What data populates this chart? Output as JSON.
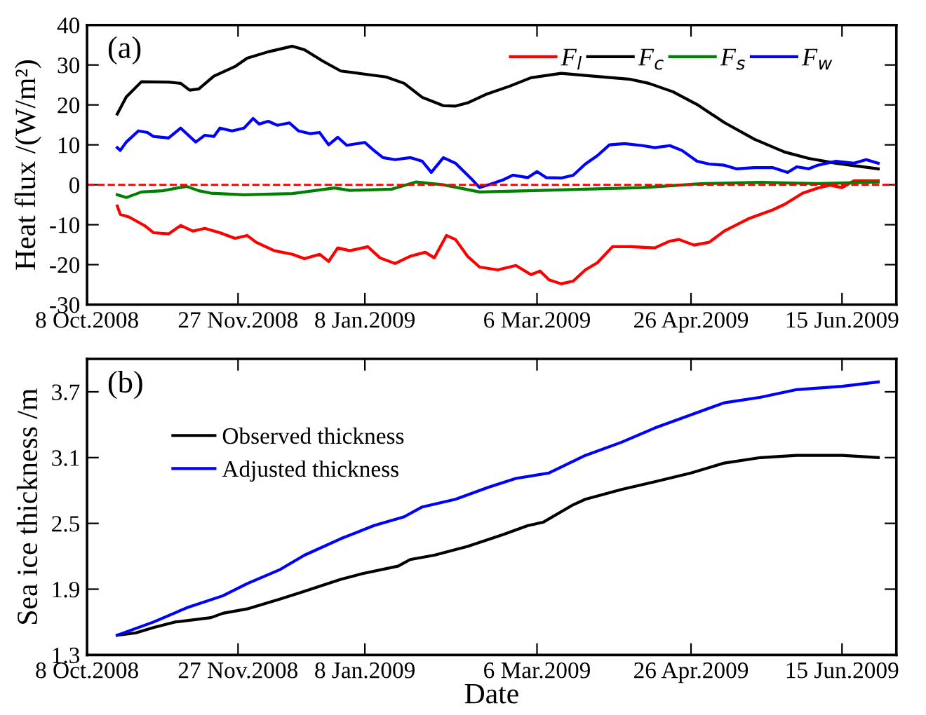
{
  "chart_data": [
    {
      "type": "line",
      "ylabel": "Heat flux /(W/m²)",
      "annotations": [
        "(a)"
      ],
      "xlim": [
        "2008-10-08",
        "2009-07-03"
      ],
      "ylim": [
        -30,
        40
      ],
      "xticks": [
        {
          "value": "2008-10-08",
          "label": "8 Oct.2008"
        },
        {
          "value": "2008-11-27",
          "label": "27 Nov.2008"
        },
        {
          "value": "2009-01-08",
          "label": "8 Jan.2009"
        },
        {
          "value": "2009-03-06",
          "label": "6 Mar.2009"
        },
        {
          "value": "2009-04-26",
          "label": "26 Apr.2009"
        },
        {
          "value": "2009-06-15",
          "label": "15 Jun.2009"
        }
      ],
      "yticks": [
        -30,
        -20,
        -10,
        0,
        10,
        20,
        30,
        40
      ],
      "grid": false,
      "legend": "top right",
      "line_style": "solid",
      "marker": "none",
      "ref_lines": [
        {
          "axis": "y",
          "value": 0,
          "color": "#ff0000",
          "line_style": "dashed"
        }
      ],
      "series": [
        {
          "name": "F$_{l}$",
          "color": "#ff0000",
          "x": [
            "2008-10-18",
            "2008-10-19",
            "2008-10-22",
            "2008-10-27",
            "2008-10-30",
            "2008-11-04",
            "2008-11-08",
            "2008-11-12",
            "2008-11-16",
            "2008-11-21",
            "2008-11-26",
            "2008-11-30",
            "2008-12-03",
            "2008-12-09",
            "2008-12-15",
            "2008-12-19",
            "2008-12-24",
            "2008-12-27",
            "2008-12-30",
            "2009-01-03",
            "2009-01-09",
            "2009-01-13",
            "2009-01-18",
            "2009-01-23",
            "2009-01-28",
            "2009-01-31",
            "2009-02-04",
            "2009-02-07",
            "2009-02-11",
            "2009-02-15",
            "2009-02-21",
            "2009-02-27",
            "2009-03-04",
            "2009-03-07",
            "2009-03-10",
            "2009-03-14",
            "2009-03-18",
            "2009-03-22",
            "2009-03-26",
            "2009-03-31",
            "2009-04-06",
            "2009-04-14",
            "2009-04-19",
            "2009-04-22",
            "2009-04-27",
            "2009-05-02",
            "2009-05-07",
            "2009-05-15",
            "2009-05-23",
            "2009-05-27",
            "2009-06-02",
            "2009-06-07",
            "2009-06-11",
            "2009-06-15",
            "2009-06-19",
            "2009-06-27"
          ],
          "values": [
            -5.3,
            -7.4,
            -8.1,
            -10.2,
            -12,
            -12.3,
            -10.2,
            -11.6,
            -10.9,
            -12,
            -13.4,
            -12.7,
            -14.4,
            -16.5,
            -17.4,
            -18.5,
            -17.4,
            -19.2,
            -15.8,
            -16.5,
            -15.5,
            -18.3,
            -19.7,
            -17.9,
            -16.9,
            -18.3,
            -12.7,
            -13.7,
            -17.9,
            -20.6,
            -21.3,
            -20.2,
            -22.5,
            -21.6,
            -23.8,
            -24.8,
            -24.1,
            -21.3,
            -19.5,
            -15.5,
            -15.5,
            -15.8,
            -14.1,
            -13.7,
            -15.1,
            -14.4,
            -11.6,
            -8.5,
            -6.3,
            -4.9,
            -2.1,
            -0.8,
            -0.1,
            -0.7,
            1,
            1
          ]
        },
        {
          "name": "F$_{c}$",
          "color": "#000000",
          "x": [
            "2008-10-18",
            "2008-10-21",
            "2008-10-26",
            "2008-11-04",
            "2008-11-08",
            "2008-11-11",
            "2008-11-14",
            "2008-11-19",
            "2008-11-26",
            "2008-11-30",
            "2008-12-07",
            "2008-12-15",
            "2008-12-19",
            "2008-12-25",
            "2008-12-31",
            "2009-01-07",
            "2009-01-15",
            "2009-01-21",
            "2009-01-27",
            "2009-02-03",
            "2009-02-07",
            "2009-02-11",
            "2009-02-17",
            "2009-02-25",
            "2009-03-04",
            "2009-03-14",
            "2009-03-20",
            "2009-03-26",
            "2009-04-06",
            "2009-04-12",
            "2009-04-20",
            "2009-04-28",
            "2009-05-07",
            "2009-05-17",
            "2009-05-27",
            "2009-06-04",
            "2009-06-13",
            "2009-06-27"
          ],
          "values": [
            17.7,
            22,
            25.8,
            25.7,
            25.4,
            23.7,
            24,
            27.2,
            29.6,
            31.7,
            33.3,
            34.7,
            33.8,
            31,
            28.5,
            27.8,
            27,
            25.4,
            21.9,
            19.8,
            19.7,
            20.5,
            22.6,
            24.7,
            26.8,
            27.9,
            27.5,
            27.1,
            26.4,
            25.4,
            23.3,
            20.1,
            15.6,
            11.4,
            8.2,
            6.6,
            5.4,
            4.0
          ]
        },
        {
          "name": "F$_{s}$",
          "color": "#008000",
          "x": [
            "2008-10-18",
            "2008-10-21",
            "2008-10-26",
            "2008-11-02",
            "2008-11-10",
            "2008-11-14",
            "2008-11-18",
            "2008-11-29",
            "2008-12-15",
            "2008-12-29",
            "2009-01-03",
            "2009-01-17",
            "2009-01-25",
            "2009-02-03",
            "2009-02-15",
            "2009-03-03",
            "2009-03-22",
            "2009-04-10",
            "2009-04-30",
            "2009-05-19",
            "2009-06-07",
            "2009-06-27"
          ],
          "values": [
            -2.5,
            -3.2,
            -1.8,
            -1.5,
            -0.4,
            -1.5,
            -2.1,
            -2.5,
            -2.2,
            -0.8,
            -1.4,
            -1.1,
            0.7,
            0,
            -1.8,
            -1.5,
            -1.1,
            -0.7,
            0.3,
            0.6,
            0.3,
            0.7
          ]
        },
        {
          "name": "F$_{w}$",
          "color": "#0000ff",
          "x": [
            "2008-10-18",
            "2008-10-19",
            "2008-10-21",
            "2008-10-25",
            "2008-10-28",
            "2008-10-30",
            "2008-11-04",
            "2008-11-08",
            "2008-11-10",
            "2008-11-13",
            "2008-11-16",
            "2008-11-19",
            "2008-11-21",
            "2008-11-25",
            "2008-11-29",
            "2008-12-02",
            "2008-12-04",
            "2008-12-07",
            "2008-12-10",
            "2008-12-14",
            "2008-12-17",
            "2008-12-21",
            "2008-12-24",
            "2008-12-27",
            "2008-12-30",
            "2009-01-02",
            "2009-01-08",
            "2009-01-11",
            "2009-01-14",
            "2009-01-18",
            "2009-01-23",
            "2009-01-27",
            "2009-01-30",
            "2009-02-03",
            "2009-02-07",
            "2009-02-12",
            "2009-02-15",
            "2009-02-18",
            "2009-02-23",
            "2009-02-26",
            "2009-03-03",
            "2009-03-06",
            "2009-03-09",
            "2009-03-14",
            "2009-03-18",
            "2009-03-22",
            "2009-03-26",
            "2009-03-30",
            "2009-04-04",
            "2009-04-10",
            "2009-04-14",
            "2009-04-19",
            "2009-04-23",
            "2009-04-28",
            "2009-05-02",
            "2009-05-07",
            "2009-05-11",
            "2009-05-17",
            "2009-05-23",
            "2009-05-28",
            "2009-05-31",
            "2009-06-04",
            "2009-06-07",
            "2009-06-13",
            "2009-06-19",
            "2009-06-23",
            "2009-06-27"
          ],
          "values": [
            9.3,
            8.6,
            10.7,
            13.5,
            13.1,
            12.1,
            11.7,
            14.2,
            12.8,
            10.7,
            12.4,
            12.1,
            14.2,
            13.5,
            14.2,
            16.6,
            15.2,
            15.9,
            14.9,
            15.5,
            13.5,
            12.8,
            13.1,
            10,
            11.9,
            9.9,
            10.6,
            8.6,
            6.8,
            6.3,
            6.8,
            5.9,
            3.1,
            6.8,
            5.4,
            1.7,
            -0.7,
            0,
            1.3,
            2.4,
            1.8,
            3.3,
            1.8,
            1.7,
            2.4,
            5.2,
            7.3,
            10,
            10.3,
            9.8,
            9.3,
            9.8,
            8.6,
            5.9,
            5.2,
            4.9,
            4,
            4.3,
            4.3,
            3.1,
            4.5,
            4,
            4.9,
            5.9,
            5.4,
            6.3,
            5.4
          ]
        }
      ]
    },
    {
      "type": "line",
      "xlabel": "Date",
      "ylabel": "Sea ice thickness /m",
      "annotations": [
        "(b)"
      ],
      "xlim": [
        "2008-10-08",
        "2009-07-03"
      ],
      "ylim": [
        1.3,
        4.0
      ],
      "xticks": [
        {
          "value": "2008-10-08",
          "label": "8 Oct.2008"
        },
        {
          "value": "2008-11-27",
          "label": "27 Nov.2008"
        },
        {
          "value": "2009-01-08",
          "label": "8 Jan.2009"
        },
        {
          "value": "2009-03-06",
          "label": "6 Mar.2009"
        },
        {
          "value": "2009-04-26",
          "label": "26 Apr.2009"
        },
        {
          "value": "2009-06-15",
          "label": "15 Jun.2009"
        }
      ],
      "yticks": [
        1.3,
        1.9,
        2.5,
        3.1,
        3.7
      ],
      "grid": false,
      "legend": "top left",
      "line_style": "solid",
      "marker": "none",
      "series": [
        {
          "name": "Observed thickness",
          "color": "#000000",
          "x": [
            "2008-10-18",
            "2008-10-24",
            "2008-10-30",
            "2008-11-06",
            "2008-11-18",
            "2008-11-22",
            "2008-11-30",
            "2008-12-11",
            "2008-12-19",
            "2008-12-31",
            "2009-01-07",
            "2009-01-19",
            "2009-01-23",
            "2009-01-31",
            "2009-02-11",
            "2009-02-23",
            "2009-03-03",
            "2009-03-08",
            "2009-03-18",
            "2009-03-22",
            "2009-04-03",
            "2009-04-14",
            "2009-04-26",
            "2009-05-07",
            "2009-05-19",
            "2009-05-31",
            "2009-06-15",
            "2009-06-27"
          ],
          "values": [
            1.48,
            1.5,
            1.55,
            1.6,
            1.64,
            1.68,
            1.72,
            1.81,
            1.88,
            1.99,
            2.04,
            2.11,
            2.17,
            2.21,
            2.29,
            2.4,
            2.48,
            2.51,
            2.67,
            2.72,
            2.81,
            2.88,
            2.96,
            3.05,
            3.1,
            3.12,
            3.12,
            3.1
          ]
        },
        {
          "name": "Adjusted thickness",
          "color": "#0000ff",
          "x": [
            "2008-10-18",
            "2008-10-30",
            "2008-11-10",
            "2008-11-22",
            "2008-11-30",
            "2008-12-11",
            "2008-12-19",
            "2008-12-31",
            "2009-01-11",
            "2009-01-21",
            "2009-01-27",
            "2009-02-07",
            "2009-02-18",
            "2009-02-27",
            "2009-03-10",
            "2009-03-22",
            "2009-04-03",
            "2009-04-14",
            "2009-04-26",
            "2009-05-07",
            "2009-05-19",
            "2009-05-31",
            "2009-06-15",
            "2009-06-27"
          ],
          "values": [
            1.48,
            1.6,
            1.73,
            1.84,
            1.95,
            2.08,
            2.21,
            2.36,
            2.48,
            2.56,
            2.65,
            2.72,
            2.83,
            2.91,
            2.96,
            3.12,
            3.24,
            3.37,
            3.49,
            3.6,
            3.65,
            3.72,
            3.75,
            3.79
          ]
        }
      ]
    }
  ]
}
